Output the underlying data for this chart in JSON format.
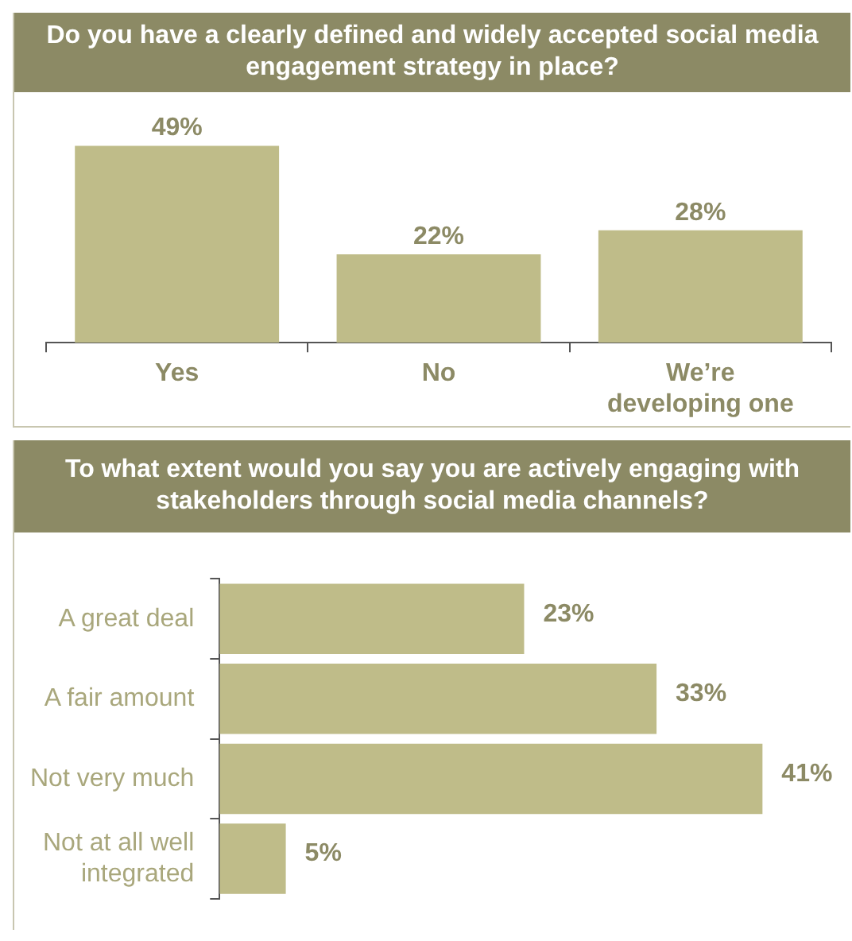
{
  "chart_data": [
    {
      "type": "bar",
      "title": "Do you have a clearly defined and widely accepted social media engagement strategy in place?",
      "categories": [
        "Yes",
        "No",
        "We’re developing one"
      ],
      "values": [
        49,
        22,
        28
      ],
      "value_labels": [
        "49%",
        "22%",
        "28%"
      ],
      "color": "#bfbc89"
    },
    {
      "type": "bar",
      "orientation": "horizontal",
      "title": "To what extent would you say you are actively engaging with stakeholders through social media channels?",
      "categories": [
        "A great deal",
        "A fair amount",
        "Not very much",
        "Not at all well integrated"
      ],
      "values": [
        23,
        33,
        41,
        5
      ],
      "value_labels": [
        "23%",
        "33%",
        "41%",
        "5%"
      ],
      "color": "#bfbc89"
    }
  ]
}
